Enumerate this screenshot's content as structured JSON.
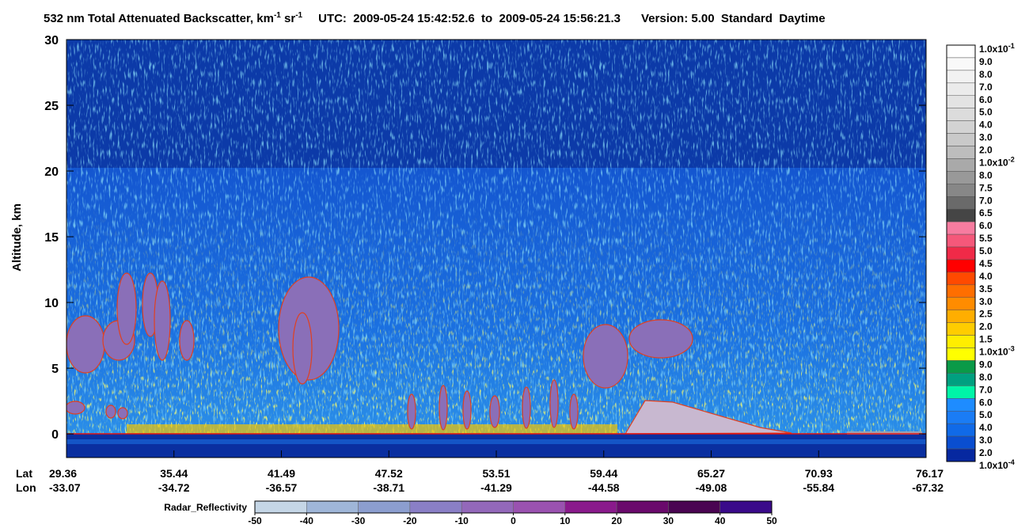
{
  "chart_data": {
    "type": "curtain",
    "title": {
      "main": "532 nm Total Attenuated Backscatter, km",
      "exp1": "-1",
      "unit": " sr",
      "exp2": "-1",
      "time": "UTC:  2009-05-24 15:42:52.6  to  2009-05-24 15:56:21.3",
      "version": "Version: 5.00  Standard  Daytime"
    },
    "ylabel": "Altitude, km",
    "ylim": [
      -1.8,
      30
    ],
    "yticks": [
      0,
      5,
      10,
      15,
      20,
      25,
      30
    ],
    "x_rows": [
      {
        "name": "Lat",
        "labels": [
          29.36,
          35.44,
          41.49,
          47.52,
          53.51,
          59.44,
          65.27,
          70.93,
          76.17
        ]
      },
      {
        "name": "Lon",
        "labels": [
          -33.07,
          -34.72,
          -36.57,
          -38.71,
          -41.29,
          -44.58,
          -49.08,
          -55.84,
          -67.32
        ]
      }
    ],
    "colorbar": {
      "labels": [
        {
          "text": "1.0x10",
          "sup": "-1"
        },
        "9.0",
        "8.0",
        "7.0",
        "6.0",
        "5.0",
        "4.0",
        "3.0",
        "2.0",
        {
          "text": "1.0x10",
          "sup": "-2"
        },
        "8.0",
        "7.5",
        "7.0",
        "6.5",
        "6.0",
        "5.5",
        "5.0",
        "4.5",
        "4.0",
        "3.5",
        "3.0",
        "2.5",
        "2.0",
        "1.5",
        {
          "text": "1.0x10",
          "sup": "-3"
        },
        "9.0",
        "8.0",
        "7.0",
        "6.0",
        "5.0",
        "4.0",
        "3.0",
        "2.0",
        {
          "text": "1.0x10",
          "sup": "-4"
        }
      ],
      "colors": [
        "#ffffff",
        "#f9f9f9",
        "#f2f2f2",
        "#ebebeb",
        "#e3e3e3",
        "#dcdcdc",
        "#d3d3d3",
        "#c9c9c9",
        "#bdbdbd",
        "#a9a9a9",
        "#999999",
        "#878787",
        "#6a6a6a",
        "#454545",
        "#f77ca0",
        "#f5587a",
        "#f02a48",
        "#ff0000",
        "#ff4a00",
        "#ff6e00",
        "#ff8c00",
        "#ffae00",
        "#ffcc00",
        "#ffee00",
        "#ffff00",
        "#0a9a48",
        "#00a080",
        "#00f5a8",
        "#1e8cff",
        "#1a7cf5",
        "#106ae8",
        "#0a4ed0",
        "#0628a0"
      ]
    },
    "radar_colorbar": {
      "label": "Radar_Reflectivity",
      "xlim": [
        -50,
        50
      ],
      "xticks": [
        -50,
        -40,
        -30,
        -20,
        -10,
        0,
        10,
        20,
        30,
        40,
        50
      ],
      "colors": [
        "#c5d6e6",
        "#9fb6d8",
        "#8c9ecf",
        "#8a7fc6",
        "#9368ba",
        "#9a52b0",
        "#8a1a8c",
        "#6a0a6c",
        "#4a0552",
        "#3a0a8a"
      ]
    }
  }
}
